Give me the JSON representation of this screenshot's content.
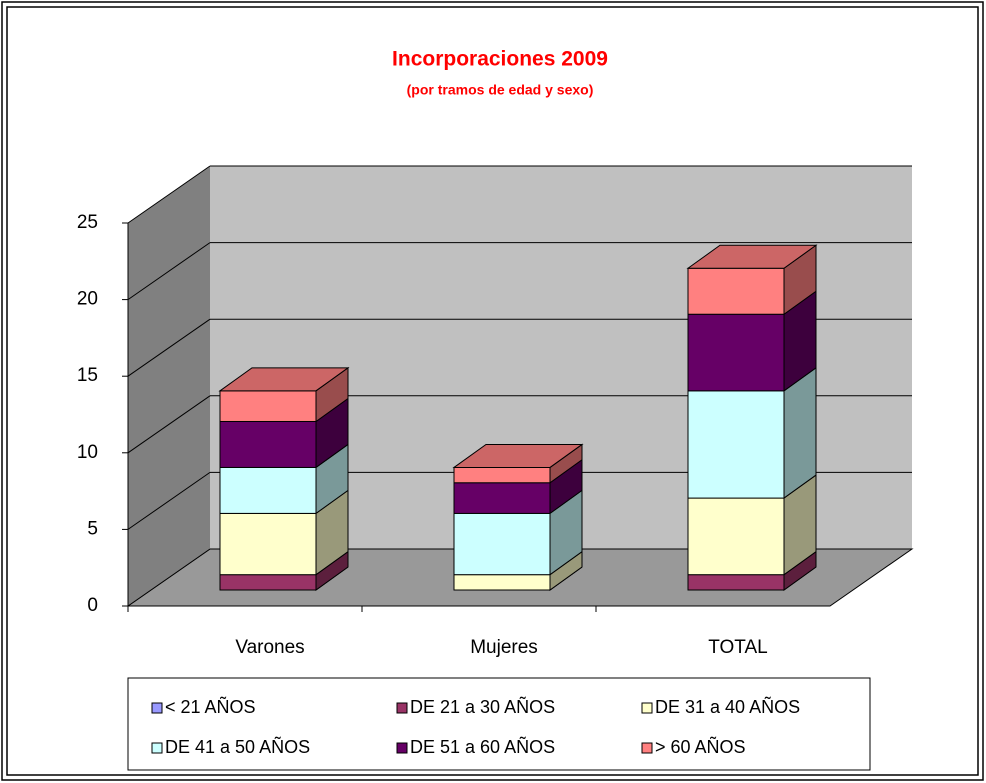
{
  "chart_data": {
    "type": "bar3d_stacked",
    "title": "Incorporaciones 2009",
    "subtitle": "(por tramos de edad y sexo)",
    "categories": [
      "Varones",
      "Mujeres",
      "TOTAL"
    ],
    "series": [
      {
        "name": "< 21 AÑOS",
        "color": "#9999ff",
        "values": [
          0,
          0,
          0
        ]
      },
      {
        "name": "DE 21 a 30 AÑOS",
        "color": "#993366",
        "values": [
          1,
          0,
          1
        ]
      },
      {
        "name": "DE 31 a 40 AÑOS",
        "color": "#ffffcc",
        "values": [
          4,
          1,
          5
        ]
      },
      {
        "name": "DE 41 a 50 AÑOS",
        "color": "#ccffff",
        "values": [
          3,
          4,
          7
        ]
      },
      {
        "name": "DE 51 a 60 AÑOS",
        "color": "#660066",
        "values": [
          3,
          2,
          5
        ]
      },
      {
        "name": "> 60 AÑOS",
        "color": "#ff8080",
        "values": [
          2,
          1,
          3
        ]
      }
    ],
    "ylim": [
      0,
      25
    ],
    "yticks": [
      0,
      5,
      10,
      15,
      20,
      25
    ],
    "grid": true,
    "legend": "bottom"
  }
}
